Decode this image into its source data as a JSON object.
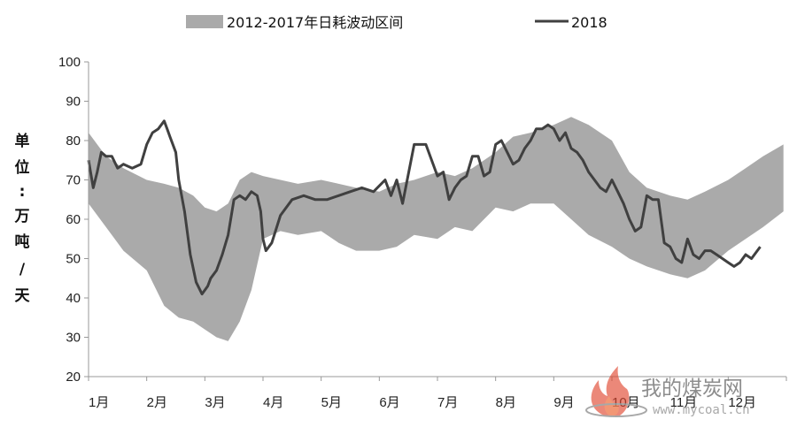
{
  "chart_data": {
    "type": "area",
    "ylim": [
      20,
      100
    ],
    "yticks": [
      20,
      30,
      40,
      50,
      60,
      70,
      80,
      90,
      100
    ],
    "ylabel_chars": [
      "单",
      "位",
      ":",
      "万",
      "吨",
      "/",
      "天"
    ],
    "months": [
      "1月",
      "2月",
      "3月",
      "4月",
      "5月",
      "6月",
      "7月",
      "8月",
      "9月",
      "10月",
      "11月",
      "12月"
    ],
    "legend_position": "top",
    "band": {
      "name": "2012-2017年日耗波动区间",
      "color": "#aaaaaa",
      "x": [
        0,
        0.3,
        0.6,
        1,
        1.3,
        1.55,
        1.8,
        2,
        2.2,
        2.4,
        2.6,
        2.8,
        3,
        3.3,
        3.6,
        4,
        4.3,
        4.6,
        5,
        5.3,
        5.6,
        6,
        6.3,
        6.6,
        7,
        7.3,
        7.6,
        8,
        8.3,
        8.6,
        9,
        9.3,
        9.6,
        10,
        10.3,
        10.6,
        11,
        11.3,
        11.6,
        11.95
      ],
      "upper": [
        82,
        76,
        73,
        70,
        69,
        68,
        66,
        63,
        62,
        64,
        70,
        72,
        71,
        70,
        69,
        70,
        69,
        68,
        67,
        69,
        70,
        72,
        71,
        73,
        77,
        81,
        82,
        84,
        86,
        84,
        80,
        72,
        68,
        66,
        65,
        67,
        70,
        73,
        76,
        79
      ],
      "lower": [
        64,
        58,
        52,
        47,
        38,
        35,
        34,
        32,
        30,
        29,
        34,
        42,
        55,
        57,
        56,
        57,
        54,
        52,
        52,
        53,
        56,
        55,
        58,
        57,
        63,
        62,
        64,
        64,
        60,
        56,
        53,
        50,
        48,
        46,
        45,
        47,
        52,
        55,
        58,
        62
      ]
    },
    "series": [
      {
        "name": "2018",
        "color": "#404040",
        "x": [
          0,
          0.08,
          0.15,
          0.22,
          0.3,
          0.4,
          0.5,
          0.6,
          0.75,
          0.9,
          1,
          1.1,
          1.2,
          1.3,
          1.35,
          1.4,
          1.5,
          1.55,
          1.65,
          1.75,
          1.85,
          1.95,
          2.05,
          2.1,
          2.2,
          2.3,
          2.4,
          2.5,
          2.6,
          2.7,
          2.8,
          2.9,
          2.96,
          3,
          3.05,
          3.15,
          3.3,
          3.5,
          3.7,
          3.9,
          4.1,
          4.3,
          4.5,
          4.7,
          4.9,
          5.1,
          5.2,
          5.3,
          5.4,
          5.6,
          5.8,
          6,
          6.1,
          6.2,
          6.3,
          6.4,
          6.5,
          6.6,
          6.7,
          6.8,
          6.9,
          7,
          7.1,
          7.2,
          7.3,
          7.4,
          7.5,
          7.6,
          7.7,
          7.8,
          7.9,
          8,
          8.1,
          8.2,
          8.3,
          8.4,
          8.5,
          8.6,
          8.7,
          8.8,
          8.9,
          9,
          9.1,
          9.2,
          9.3,
          9.4,
          9.5,
          9.6,
          9.7,
          9.8,
          9.9,
          10,
          10.1,
          10.2,
          10.3,
          10.4,
          10.5,
          10.6,
          10.7,
          10.8,
          10.9,
          11,
          11.1,
          11.2,
          11.3,
          11.4,
          11.55
        ],
        "y": [
          75,
          68,
          72,
          77,
          76,
          76,
          73,
          74,
          73,
          74,
          79,
          82,
          83,
          85,
          83,
          81,
          77,
          70,
          62,
          51,
          44,
          41,
          43,
          45,
          47,
          51,
          56,
          65,
          66,
          65,
          67,
          66,
          62,
          55,
          52,
          54,
          61,
          65,
          66,
          65,
          65,
          66,
          67,
          68,
          67,
          70,
          66,
          70,
          64,
          79,
          79,
          71,
          72,
          65,
          68,
          70,
          71,
          76,
          76,
          71,
          72,
          79,
          80,
          77,
          74,
          75,
          78,
          80,
          83,
          83,
          84,
          83,
          80,
          82,
          78,
          77,
          75,
          72,
          70,
          68,
          67,
          70,
          67,
          64,
          60,
          57,
          58,
          66,
          65,
          65,
          54,
          53,
          50,
          49,
          55,
          51,
          50,
          52,
          52,
          51,
          50,
          49,
          48,
          49,
          51,
          50,
          53
        ]
      }
    ]
  },
  "watermark": {
    "text": "我的煤炭网",
    "url": "www.mycoal.cn"
  }
}
